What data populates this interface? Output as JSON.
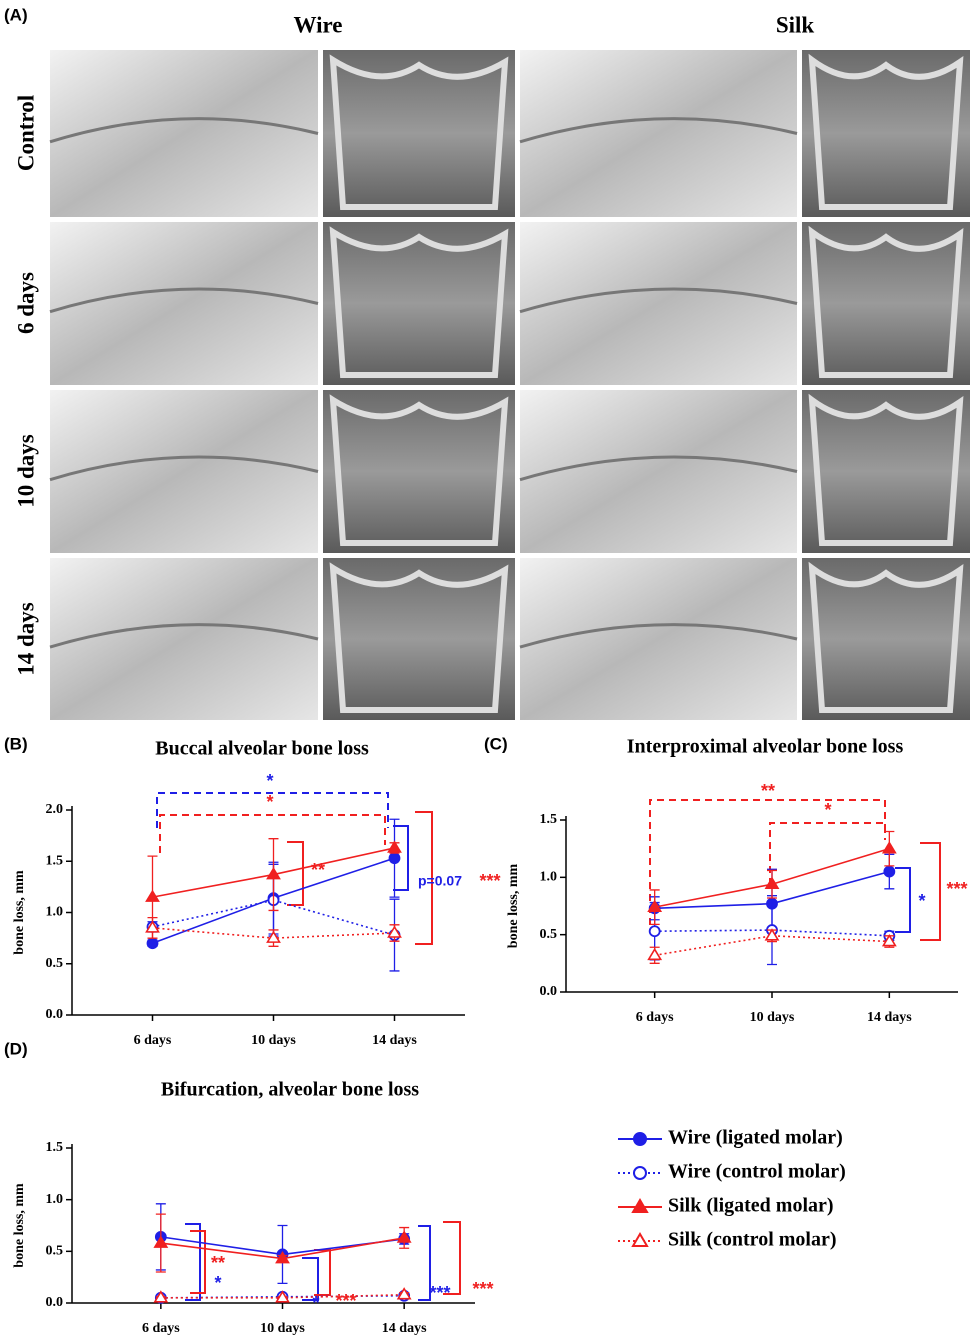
{
  "panel_labels": [
    "(A)",
    "(B)",
    "(C)",
    "(D)"
  ],
  "columns": [
    "Wire",
    "Silk"
  ],
  "rows": [
    "Control",
    "6 days",
    "10 days",
    "14 days"
  ],
  "chart_data": [
    {
      "type": "line",
      "title": "Buccal alveolar bone loss",
      "y_label": "bone loss, mm",
      "categories": [
        "6 days",
        "10 days",
        "14 days"
      ],
      "ylim": [
        0,
        2
      ],
      "yticks": [
        {
          "value": 0,
          "label": "0.0"
        },
        0.5,
        {
          "value": 1,
          "label": "1.0"
        },
        1.5,
        {
          "value": 2,
          "label": "2.0"
        }
      ],
      "series": [
        {
          "name": "Wire (ligated molar)",
          "color": "#1f1fe6",
          "marker": "circle",
          "filled": true,
          "dashed": false,
          "values": [
            0.7,
            1.14,
            1.53
          ],
          "errors": [
            0.03,
            0.35,
            0.38
          ]
        },
        {
          "name": "Wire (control molar)",
          "color": "#1f1fe6",
          "marker": "circle",
          "filled": false,
          "dashed": true,
          "values": [
            0.86,
            1.12,
            0.78
          ],
          "errors": [
            0.05,
            0.35,
            0.35
          ]
        },
        {
          "name": "Silk (ligated molar)",
          "color": "#f02020",
          "marker": "triangle",
          "filled": true,
          "dashed": false,
          "values": [
            1.15,
            1.37,
            1.63
          ],
          "errors": [
            0.4,
            0.35,
            0.05
          ]
        },
        {
          "name": "Silk (control molar)",
          "color": "#f02020",
          "marker": "triangle",
          "filled": false,
          "dashed": true,
          "values": [
            0.85,
            0.75,
            0.8
          ],
          "errors": [
            0.1,
            0.08,
            0.08
          ]
        }
      ],
      "annotations": [
        {
          "text": "*",
          "color": "#1f1fe6"
        },
        {
          "text": "*",
          "color": "#f02020"
        },
        {
          "text": "**",
          "color": "#f02020"
        },
        {
          "text": "p=0.07",
          "color": "#1f1fe6"
        },
        {
          "text": "***",
          "color": "#f02020"
        }
      ]
    },
    {
      "type": "line",
      "title": "Interproximal alveolar bone loss",
      "y_label": "bone loss, mm",
      "categories": [
        "6 days",
        "10 days",
        "14 days"
      ],
      "ylim": [
        0,
        1.5
      ],
      "yticks": [
        {
          "value": 0,
          "label": "0.0"
        },
        0.5,
        {
          "value": 1,
          "label": "1.0"
        },
        1.5
      ],
      "series": [
        {
          "name": "Wire (ligated molar)",
          "color": "#1f1fe6",
          "marker": "circle",
          "filled": true,
          "dashed": false,
          "values": [
            0.73,
            0.77,
            1.05
          ],
          "errors": [
            0.1,
            0.3,
            0.15
          ]
        },
        {
          "name": "Wire (control molar)",
          "color": "#1f1fe6",
          "marker": "circle",
          "filled": false,
          "dashed": true,
          "values": [
            0.53,
            0.54,
            0.49
          ],
          "errors": [
            0.25,
            0.3,
            0.04
          ]
        },
        {
          "name": "Silk (ligated molar)",
          "color": "#f02020",
          "marker": "triangle",
          "filled": true,
          "dashed": false,
          "values": [
            0.74,
            0.94,
            1.25
          ],
          "errors": [
            0.15,
            0.12,
            0.15
          ]
        },
        {
          "name": "Silk (control molar)",
          "color": "#f02020",
          "marker": "triangle",
          "filled": false,
          "dashed": true,
          "values": [
            0.32,
            0.49,
            0.44
          ],
          "errors": [
            0.07,
            0.05,
            0.05
          ]
        }
      ],
      "annotations": [
        {
          "text": "**",
          "color": "#f02020"
        },
        {
          "text": "*",
          "color": "#f02020"
        },
        {
          "text": "*",
          "color": "#1f1fe6"
        },
        {
          "text": "***",
          "color": "#f02020"
        }
      ]
    },
    {
      "type": "line",
      "title": "Bifurcation, alveolar bone loss",
      "y_label": "bone loss, mm",
      "categories": [
        "6 days",
        "10 days",
        "14 days"
      ],
      "ylim": [
        0,
        1.5
      ],
      "yticks": [
        {
          "value": 0,
          "label": "0.0"
        },
        0.5,
        {
          "value": 1,
          "label": "1.0"
        },
        1.5
      ],
      "series": [
        {
          "name": "Wire (ligated molar)",
          "color": "#1f1fe6",
          "marker": "circle",
          "filled": true,
          "dashed": false,
          "values": [
            0.64,
            0.47,
            0.62
          ],
          "errors": [
            0.32,
            0.28,
            0.05
          ]
        },
        {
          "name": "Wire (control molar)",
          "color": "#1f1fe6",
          "marker": "circle",
          "filled": false,
          "dashed": true,
          "values": [
            0.05,
            0.06,
            0.07
          ],
          "errors": [
            0.01,
            0.01,
            0.01
          ]
        },
        {
          "name": "Silk (ligated molar)",
          "color": "#f02020",
          "marker": "triangle",
          "filled": true,
          "dashed": false,
          "values": [
            0.58,
            0.43,
            0.63
          ],
          "errors": [
            0.28,
            0.03,
            0.1
          ]
        },
        {
          "name": "Silk (control molar)",
          "color": "#f02020",
          "marker": "triangle",
          "filled": false,
          "dashed": true,
          "values": [
            0.05,
            0.05,
            0.08
          ],
          "errors": [
            0.01,
            0.01,
            0.02
          ]
        }
      ],
      "annotations": [
        {
          "text": "*",
          "color": "#1f1fe6"
        },
        {
          "text": "**",
          "color": "#f02020"
        },
        {
          "text": "*",
          "color": "#1f1fe6"
        },
        {
          "text": "***",
          "color": "#f02020"
        },
        {
          "text": "***",
          "color": "#1f1fe6"
        },
        {
          "text": "***",
          "color": "#f02020"
        }
      ]
    }
  ]
}
